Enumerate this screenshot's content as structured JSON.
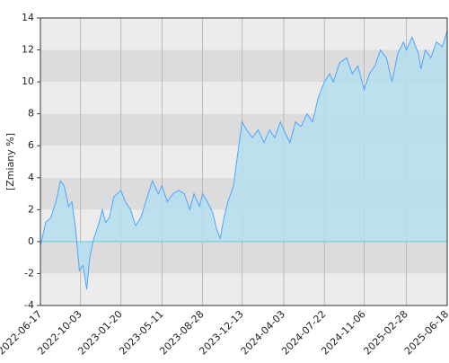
{
  "chart_data": {
    "type": "area",
    "y_label": "[Zmiany %]",
    "x": [
      "2022-06-17",
      "2022-07-01",
      "2022-07-15",
      "2022-07-29",
      "2022-08-10",
      "2022-08-20",
      "2022-09-01",
      "2022-09-10",
      "2022-09-20",
      "2022-09-30",
      "2022-10-10",
      "2022-10-20",
      "2022-10-28",
      "2022-11-08",
      "2022-11-20",
      "2022-12-01",
      "2022-12-10",
      "2022-12-20",
      "2023-01-01",
      "2023-01-10",
      "2023-01-20",
      "2023-02-01",
      "2023-02-15",
      "2023-03-01",
      "2023-03-15",
      "2023-04-01",
      "2023-04-15",
      "2023-05-01",
      "2023-05-11",
      "2023-05-25",
      "2023-06-10",
      "2023-06-25",
      "2023-07-10",
      "2023-07-25",
      "2023-08-05",
      "2023-08-20",
      "2023-08-28",
      "2023-09-10",
      "2023-09-25",
      "2023-10-05",
      "2023-10-15",
      "2023-10-25",
      "2023-11-05",
      "2023-11-20",
      "2023-12-01",
      "2023-12-13",
      "2023-12-25",
      "2024-01-10",
      "2024-01-25",
      "2024-02-10",
      "2024-02-25",
      "2024-03-10",
      "2024-03-25",
      "2024-04-03",
      "2024-04-20",
      "2024-05-05",
      "2024-05-20",
      "2024-06-05",
      "2024-06-20",
      "2024-07-05",
      "2024-07-22",
      "2024-08-05",
      "2024-08-15",
      "2024-09-01",
      "2024-09-20",
      "2024-10-05",
      "2024-10-20",
      "2024-11-06",
      "2024-11-20",
      "2024-12-05",
      "2024-12-20",
      "2025-01-05",
      "2025-01-20",
      "2025-02-05",
      "2025-02-20",
      "2025-02-28",
      "2025-03-15",
      "2025-04-01",
      "2025-04-08",
      "2025-04-20",
      "2025-05-05",
      "2025-05-20",
      "2025-06-05",
      "2025-06-18"
    ],
    "series": [
      {
        "color": "#4da6ff",
        "fill": "#b5deee",
        "values": [
          -0.3,
          1.2,
          1.5,
          2.5,
          3.8,
          3.5,
          2.2,
          2.5,
          0.8,
          -1.8,
          -1.5,
          -3.0,
          -1.0,
          0.2,
          1.0,
          2.0,
          1.2,
          1.5,
          2.8,
          3.0,
          3.2,
          2.5,
          2.0,
          1.0,
          1.5,
          2.8,
          3.8,
          3.0,
          3.5,
          2.5,
          3.0,
          3.2,
          3.0,
          2.0,
          3.0,
          2.2,
          3.0,
          2.5,
          1.8,
          0.8,
          0.2,
          1.5,
          2.5,
          3.5,
          5.5,
          7.5,
          7.0,
          6.5,
          7.0,
          6.2,
          7.0,
          6.5,
          7.5,
          7.0,
          6.2,
          7.5,
          7.2,
          8.0,
          7.5,
          9.0,
          10.0,
          10.5,
          10.0,
          11.2,
          11.5,
          10.5,
          11.0,
          9.5,
          10.5,
          11.0,
          12.0,
          11.5,
          10.0,
          11.8,
          12.5,
          12.0,
          12.8,
          11.8,
          10.8,
          12.0,
          11.5,
          12.5,
          12.2,
          13.2
        ]
      }
    ],
    "xlim": [
      "2022-06-17",
      "2025-06-18"
    ],
    "xticks": [
      "2022-06-17",
      "2022-10-03",
      "2023-01-20",
      "2023-05-11",
      "2023-08-28",
      "2023-12-13",
      "2024-04-03",
      "2024-07-22",
      "2024-11-06",
      "2025-02-28",
      "2025-06-18"
    ],
    "ylim": [
      -4,
      14
    ],
    "yticks": [
      -4,
      -2,
      0,
      2,
      4,
      6,
      8,
      10,
      12,
      14
    ],
    "grid": true
  }
}
